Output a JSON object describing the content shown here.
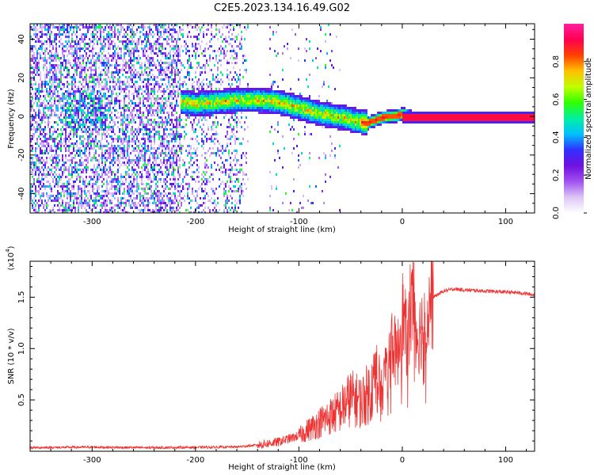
{
  "figure_title": "C2E5.2023.134.16.49.G02",
  "chart_data": [
    {
      "type": "heatmap",
      "title": "C2E5.2023.134.16.49.G02",
      "xlabel": "Height of straight line (km)",
      "ylabel": "Frequency (Hz)",
      "xlim": [
        -360,
        128
      ],
      "ylim": [
        -50,
        48
      ],
      "x_ticks": [
        -300,
        -200,
        -100,
        0,
        100
      ],
      "y_ticks": [
        -40,
        -20,
        0,
        20,
        40
      ],
      "colorbar": {
        "label": "Normalized spectral amplitude",
        "range": [
          0.0,
          1.0
        ],
        "ticks": [
          0.0,
          0.2,
          0.4,
          0.6,
          0.8
        ],
        "tick_labels": [
          "0.0",
          "0.2",
          "0.4",
          "0.6",
          "0.8"
        ],
        "colors": [
          "#ffffff",
          "#dcc6f6",
          "#a050f0",
          "#7010e0",
          "#3030ff",
          "#00c0ff",
          "#00f0a0",
          "#30ff00",
          "#c0ff00",
          "#ffc000",
          "#ff4000",
          "#ff0050",
          "#ff20a0"
        ]
      },
      "series": [
        {
          "name": "signal ridge (center frequency)",
          "x": [
            -215,
            -200,
            -180,
            -160,
            -140,
            -120,
            -100,
            -80,
            -60,
            -45,
            -35,
            -20,
            -5,
            0,
            10,
            50,
            128
          ],
          "y": [
            8,
            7,
            8,
            9,
            9,
            8,
            5,
            2,
            0,
            -2,
            -3,
            0,
            1,
            2,
            0,
            0,
            0
          ]
        }
      ],
      "noise_region_x": [
        -360,
        -130
      ]
    },
    {
      "type": "line",
      "xlabel": "Height of straight line (km)",
      "ylabel": "SNR (10 * v/v)",
      "y_multiplier_label": "(x10",
      "y_multiplier_exp": "4",
      "y_multiplier_close": ")",
      "xlim": [
        -360,
        128
      ],
      "ylim": [
        0,
        18500
      ],
      "x_ticks": [
        -300,
        -200,
        -100,
        0,
        100
      ],
      "y_ticks": [
        5000,
        10000,
        15000
      ],
      "y_tick_labels": [
        "0.5",
        "1.0",
        "1.5"
      ],
      "series": [
        {
          "name": "SNR",
          "color": "#ee3333",
          "x": [
            -360,
            -300,
            -250,
            -200,
            -160,
            -140,
            -120,
            -100,
            -80,
            -60,
            -50,
            -40,
            -30,
            -25,
            -20,
            -15,
            -10,
            -5,
            0,
            5,
            10,
            15,
            20,
            25,
            30,
            40,
            50,
            60,
            70,
            80,
            90,
            100,
            110,
            120,
            128
          ],
          "y": [
            350,
            400,
            350,
            380,
            420,
            600,
            900,
            1500,
            2800,
            4000,
            5200,
            4800,
            6000,
            7500,
            5000,
            9500,
            10800,
            9000,
            13500,
            10500,
            14000,
            11000,
            12500,
            13800,
            15000,
            15600,
            15800,
            15700,
            15650,
            15600,
            15550,
            15500,
            15450,
            15350,
            15200
          ]
        }
      ]
    }
  ]
}
